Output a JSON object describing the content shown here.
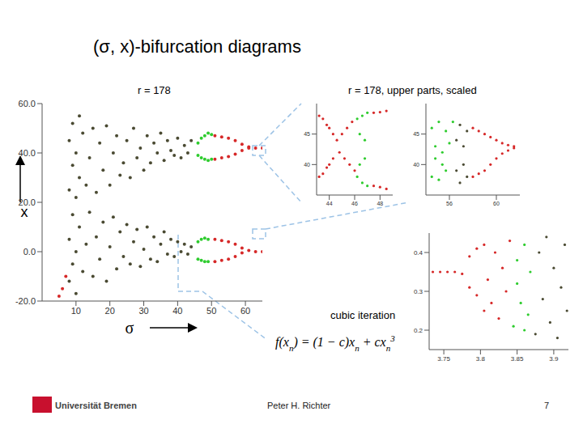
{
  "title": "(σ, x)-bifurcation diagrams",
  "caption_upper": "r = 178, upper parts, scaled",
  "formula": [
    {
      "text": "f(x"
    },
    {
      "text": "n",
      "sub": true
    },
    {
      "text": ") = (1 − c)x"
    },
    {
      "text": "n",
      "sub": true
    },
    {
      "text": " + cx"
    },
    {
      "text": "n",
      "sub": true
    },
    {
      "text": "3",
      "sup": true
    }
  ],
  "footer": {
    "institution": "Universität Bremen",
    "author": "Peter H. Richter",
    "page": 7
  },
  "chart_data": [
    {
      "type": "scatter",
      "title": "r = 178",
      "x_label": "σ",
      "y_label": "x",
      "xlim": [
        0,
        65
      ],
      "xticks": [
        10,
        20,
        30,
        40,
        50,
        60
      ],
      "ylim": [
        -20,
        60
      ],
      "yticks": [
        {
          "value": -20,
          "label": "-20.0"
        },
        {
          "value": 0,
          "label": "0.0"
        },
        {
          "value": 20,
          "label": "20.0"
        },
        {
          "value": 40,
          "label": "40.0"
        },
        {
          "value": 60,
          "label": "60.0"
        }
      ],
      "series": [
        {
          "color": "#4a4a32",
          "values": [
            [
              8,
              25
            ],
            [
              8,
              45
            ],
            [
              9,
              35
            ],
            [
              9,
              52
            ],
            [
              10,
              22
            ],
            [
              10,
              40
            ],
            [
              11,
              30
            ],
            [
              11,
              55
            ],
            [
              12,
              48
            ],
            [
              13,
              27
            ],
            [
              14,
              38
            ],
            [
              15,
              50
            ],
            [
              16,
              24
            ],
            [
              17,
              44
            ],
            [
              18,
              33
            ],
            [
              19,
              51
            ],
            [
              20,
              27
            ],
            [
              21,
              40
            ],
            [
              22,
              47
            ],
            [
              23,
              31
            ],
            [
              24,
              36
            ],
            [
              25,
              45
            ],
            [
              26,
              30
            ],
            [
              27,
              50
            ],
            [
              28,
              38
            ],
            [
              29,
              42
            ],
            [
              30,
              33
            ],
            [
              31,
              47
            ],
            [
              32,
              36
            ],
            [
              33,
              44
            ],
            [
              34,
              40
            ],
            [
              35,
              48
            ],
            [
              36,
              37
            ],
            [
              37,
              45
            ],
            [
              38,
              41
            ],
            [
              39,
              39
            ],
            [
              40,
              46
            ],
            [
              41,
              38
            ],
            [
              42,
              43
            ],
            [
              43,
              40
            ],
            [
              44,
              45
            ],
            [
              8,
              -12
            ],
            [
              8,
              5
            ],
            [
              9,
              15
            ],
            [
              9,
              -5
            ],
            [
              10,
              0
            ],
            [
              10,
              -17
            ],
            [
              11,
              10
            ],
            [
              12,
              -8
            ],
            [
              13,
              3
            ],
            [
              14,
              16
            ],
            [
              15,
              -10
            ],
            [
              16,
              6
            ],
            [
              17,
              -3
            ],
            [
              18,
              12
            ],
            [
              19,
              -12
            ],
            [
              20,
              2
            ],
            [
              21,
              14
            ],
            [
              22,
              -7
            ],
            [
              23,
              8
            ],
            [
              24,
              -2
            ],
            [
              25,
              11
            ],
            [
              26,
              -5
            ],
            [
              27,
              4
            ],
            [
              28,
              9
            ],
            [
              29,
              -6
            ],
            [
              30,
              1
            ],
            [
              31,
              10
            ],
            [
              32,
              -3
            ],
            [
              33,
              6
            ],
            [
              34,
              -4
            ],
            [
              35,
              3
            ],
            [
              36,
              8
            ],
            [
              37,
              -1
            ],
            [
              38,
              5
            ],
            [
              39,
              -2
            ],
            [
              40,
              4
            ],
            [
              41,
              0
            ],
            [
              42,
              3
            ],
            [
              43,
              -1
            ],
            [
              44,
              2
            ]
          ]
        },
        {
          "color": "#2ecc2e",
          "values": [
            [
              46,
              44
            ],
            [
              47,
              46
            ],
            [
              48,
              47
            ],
            [
              49,
              48
            ],
            [
              50,
              47.5
            ],
            [
              46,
              39
            ],
            [
              47,
              38
            ],
            [
              48,
              37.5
            ],
            [
              49,
              37
            ],
            [
              50,
              37.5
            ],
            [
              46,
              4
            ],
            [
              47,
              5
            ],
            [
              48,
              5.5
            ],
            [
              49,
              5
            ],
            [
              46,
              -3
            ],
            [
              47,
              -3.5
            ],
            [
              48,
              -4
            ],
            [
              49,
              -4
            ]
          ]
        },
        {
          "color": "#d62828",
          "values": [
            [
              51,
              47
            ],
            [
              53,
              46.5
            ],
            [
              55,
              46
            ],
            [
              57,
              45
            ],
            [
              59,
              43.5
            ],
            [
              61,
              42.5
            ],
            [
              63,
              42
            ],
            [
              65,
              42
            ],
            [
              51,
              37.5
            ],
            [
              53,
              38
            ],
            [
              55,
              38.5
            ],
            [
              57,
              39.5
            ],
            [
              59,
              41
            ],
            [
              61,
              42
            ],
            [
              51,
              5
            ],
            [
              53,
              4.5
            ],
            [
              55,
              4
            ],
            [
              57,
              3
            ],
            [
              59,
              1.5
            ],
            [
              61,
              0.5
            ],
            [
              63,
              0
            ],
            [
              65,
              0
            ],
            [
              51,
              -4
            ],
            [
              53,
              -3.5
            ],
            [
              55,
              -3
            ],
            [
              57,
              -2
            ],
            [
              59,
              -0.5
            ],
            [
              5,
              -18
            ],
            [
              6,
              -15
            ],
            [
              7,
              -10
            ]
          ]
        }
      ]
    },
    {
      "type": "scatter",
      "xlim": [
        43,
        49
      ],
      "xticks": [
        44,
        46,
        48
      ],
      "ylim": [
        35,
        50
      ],
      "yticks": [
        40,
        45
      ],
      "series": [
        {
          "color": "#d62828",
          "values": [
            [
              43.2,
              48
            ],
            [
              43.5,
              47.5
            ],
            [
              43.8,
              46.5
            ],
            [
              44,
              46
            ],
            [
              44.3,
              45
            ],
            [
              43.2,
              38
            ],
            [
              43.5,
              38.5
            ],
            [
              43.8,
              39.5
            ],
            [
              44,
              40
            ],
            [
              44.3,
              41
            ],
            [
              44.6,
              44
            ],
            [
              44.8,
              42
            ],
            [
              45,
              45
            ],
            [
              45.2,
              41
            ],
            [
              45.4,
              46
            ],
            [
              45.6,
              40
            ],
            [
              45.8,
              47
            ],
            [
              46,
              39
            ],
            [
              47.5,
              48.5
            ],
            [
              48,
              48.6
            ],
            [
              48.5,
              48.8
            ],
            [
              47.5,
              36.5
            ],
            [
              48,
              36.3
            ],
            [
              48.5,
              36
            ]
          ]
        },
        {
          "color": "#2ecc2e",
          "values": [
            [
              46.2,
              47.5
            ],
            [
              46.4,
              45
            ],
            [
              46.6,
              48
            ],
            [
              46.8,
              44
            ],
            [
              47,
              48.5
            ],
            [
              46.2,
              38
            ],
            [
              46.4,
              40
            ],
            [
              46.6,
              37
            ],
            [
              46.8,
              41
            ],
            [
              47,
              36.5
            ]
          ]
        }
      ]
    },
    {
      "type": "scatter",
      "xlim": [
        54,
        62
      ],
      "xticks": [
        56,
        60
      ],
      "ylim": [
        35,
        50
      ],
      "yticks": [
        40,
        45
      ],
      "series": [
        {
          "color": "#2ecc2e",
          "values": [
            [
              54.5,
              46
            ],
            [
              54.8,
              43
            ],
            [
              55.1,
              47
            ],
            [
              55.4,
              42
            ],
            [
              55.7,
              45.5
            ],
            [
              56,
              43.5
            ],
            [
              56.3,
              47
            ],
            [
              54.5,
              38
            ],
            [
              54.8,
              41
            ],
            [
              55.1,
              37.5
            ],
            [
              55.4,
              40
            ],
            [
              55.7,
              39
            ]
          ]
        },
        {
          "color": "#4a4a32",
          "values": [
            [
              56.6,
              44
            ],
            [
              56.9,
              46.5
            ],
            [
              57.2,
              43
            ],
            [
              57.5,
              45.5
            ],
            [
              56.6,
              39
            ],
            [
              56.9,
              37
            ],
            [
              57.2,
              40
            ],
            [
              57.5,
              38
            ]
          ]
        },
        {
          "color": "#d62828",
          "values": [
            [
              58,
              46
            ],
            [
              58.5,
              45.5
            ],
            [
              59,
              45
            ],
            [
              59.5,
              44.5
            ],
            [
              60,
              44
            ],
            [
              60.5,
              43.5
            ],
            [
              61,
              43.2
            ],
            [
              61.5,
              43
            ],
            [
              58,
              38
            ],
            [
              58.5,
              38.5
            ],
            [
              59,
              39
            ],
            [
              59.5,
              40
            ],
            [
              60,
              41
            ],
            [
              60.5,
              41.8
            ],
            [
              61,
              42.3
            ],
            [
              61.5,
              42.7
            ]
          ]
        }
      ]
    },
    {
      "type": "scatter",
      "title": "cubic iteration",
      "xlim": [
        3.73,
        3.92
      ],
      "xticks": [
        3.75,
        3.8,
        3.85,
        3.9
      ],
      "ylim": [
        0.15,
        0.45
      ],
      "yticks": [
        0.2,
        0.3,
        0.4
      ],
      "series": [
        {
          "color": "#d62828",
          "values": [
            [
              3.735,
              0.35
            ],
            [
              3.745,
              0.35
            ],
            [
              3.755,
              0.35
            ],
            [
              3.765,
              0.35
            ],
            [
              3.775,
              0.345
            ],
            [
              3.785,
              0.31
            ],
            [
              3.785,
              0.39
            ],
            [
              3.795,
              0.29
            ],
            [
              3.795,
              0.41
            ],
            [
              3.805,
              0.25
            ],
            [
              3.805,
              0.42
            ],
            [
              3.81,
              0.33
            ],
            [
              3.815,
              0.27
            ],
            [
              3.82,
              0.4
            ],
            [
              3.825,
              0.23
            ],
            [
              3.83,
              0.36
            ],
            [
              3.835,
              0.3
            ],
            [
              3.84,
              0.43
            ]
          ]
        },
        {
          "color": "#2ecc2e",
          "values": [
            [
              3.845,
              0.21
            ],
            [
              3.85,
              0.38
            ],
            [
              3.855,
              0.27
            ],
            [
              3.86,
              0.42
            ],
            [
              3.865,
              0.24
            ],
            [
              3.85,
              0.32
            ],
            [
              3.86,
              0.2
            ],
            [
              3.868,
              0.35
            ]
          ]
        },
        {
          "color": "#4a4a32",
          "values": [
            [
              3.875,
              0.19
            ],
            [
              3.88,
              0.4
            ],
            [
              3.885,
              0.28
            ],
            [
              3.89,
              0.44
            ],
            [
              3.895,
              0.22
            ],
            [
              3.9,
              0.36
            ],
            [
              3.905,
              0.18
            ],
            [
              3.91,
              0.31
            ],
            [
              3.915,
              0.42
            ],
            [
              3.918,
              0.25
            ]
          ]
        }
      ]
    }
  ]
}
